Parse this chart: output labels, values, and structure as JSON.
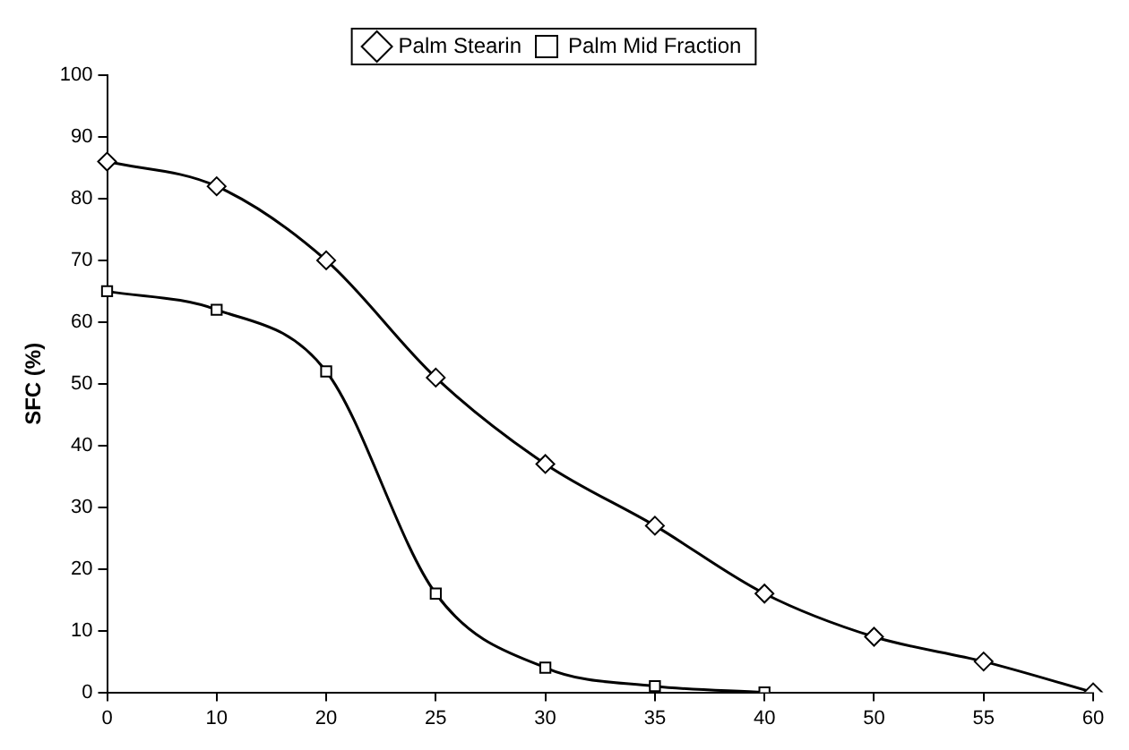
{
  "chart_data": {
    "type": "line",
    "ylabel": "SFC (%)",
    "categories": [
      "0",
      "10",
      "20",
      "25",
      "30",
      "35",
      "40",
      "50",
      "55",
      "60"
    ],
    "series": [
      {
        "name": "Palm Stearin",
        "color": "#000000",
        "marker": "diamond",
        "values": [
          86,
          82,
          70,
          51,
          37,
          27,
          16,
          9,
          5,
          0
        ]
      },
      {
        "name": "Palm Mid Fraction",
        "color": "#000000",
        "marker": "square",
        "values": [
          65,
          62,
          52,
          16,
          4,
          1,
          0,
          null,
          null,
          null
        ]
      }
    ],
    "ylim": [
      0,
      100
    ],
    "yticks": [
      0,
      10,
      20,
      30,
      40,
      50,
      60,
      70,
      80,
      90,
      100
    ],
    "grid": false,
    "legend": "top"
  }
}
